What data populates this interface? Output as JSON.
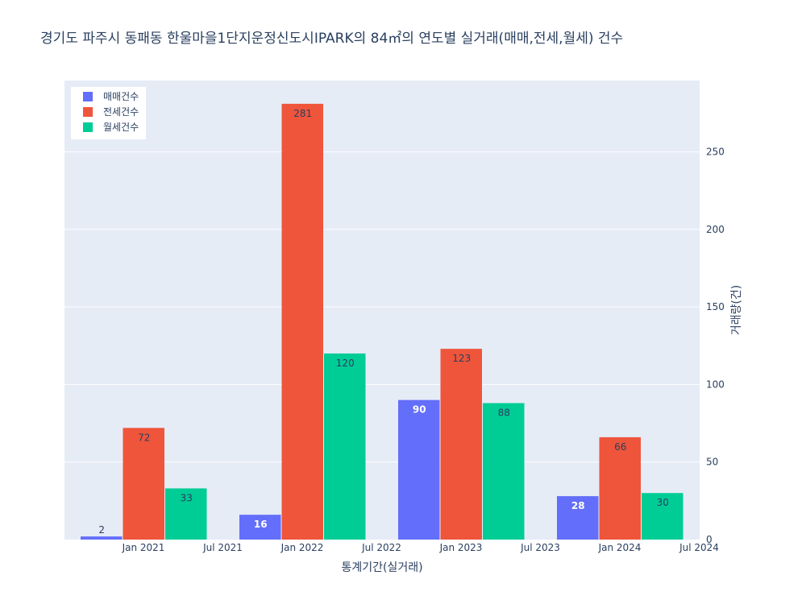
{
  "chart_data": {
    "type": "bar",
    "title": "경기도 파주시 동패동 한울마을1단지운정신도시IPARK의 84㎡의 연도별 실거래(매매,전세,월세) 건수",
    "xlabel": "통계기간(실거래)",
    "ylabel": "거래량(건)",
    "categories": [
      "2021",
      "2022",
      "2023",
      "2024"
    ],
    "x_ticks": [
      "Jan 2021",
      "Jul 2021",
      "Jan 2022",
      "Jul 2022",
      "Jan 2023",
      "Jul 2023",
      "Jan 2024",
      "Jul 2024"
    ],
    "y_ticks": [
      0,
      50,
      100,
      150,
      200,
      250
    ],
    "ylim": [
      0,
      296
    ],
    "y_axis_side": "right",
    "grid": true,
    "legend_position": "top-left",
    "series": [
      {
        "name": "매매건수",
        "color": "#636efa",
        "values": [
          2,
          16,
          90,
          28
        ]
      },
      {
        "name": "전세건수",
        "color": "#ef553b",
        "values": [
          72,
          281,
          123,
          66
        ]
      },
      {
        "name": "월세건수",
        "color": "#00cc96",
        "values": [
          33,
          120,
          88,
          30
        ]
      }
    ]
  },
  "colors": {
    "plot_background": "#e5ecf6",
    "gridline": "#ffffff",
    "text": "#2a3f5f"
  }
}
